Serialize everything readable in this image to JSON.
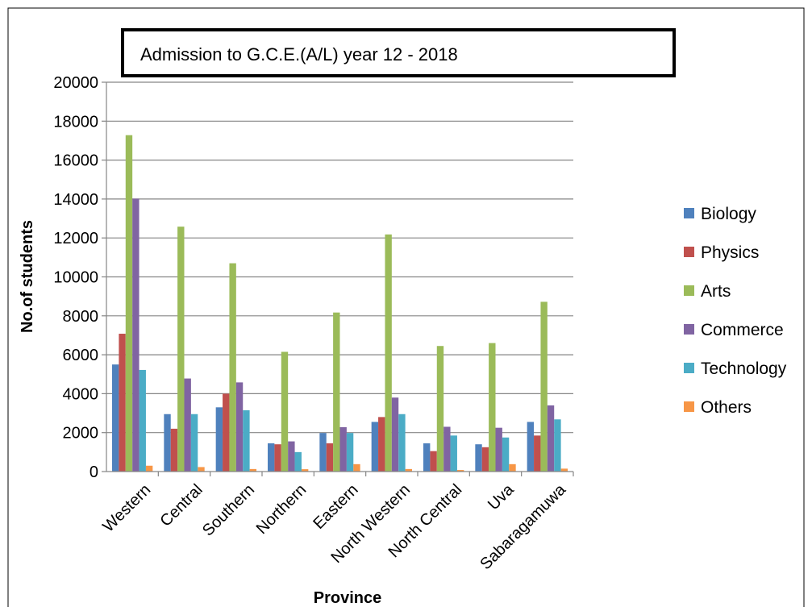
{
  "chart_data": {
    "type": "bar",
    "title": "Admission to G.C.E.(A/L) year 12 - 2018",
    "xlabel": "Province",
    "ylabel": "No.of students",
    "ylim": [
      0,
      20000
    ],
    "yticks": [
      0,
      2000,
      4000,
      6000,
      8000,
      10000,
      12000,
      14000,
      16000,
      18000,
      20000
    ],
    "grid": true,
    "legend_position": "right",
    "categories": [
      "Western",
      "Central",
      "Southern",
      "Northern",
      "Eastern",
      "North Western",
      "North Central",
      "Uva",
      "Sabaragamuwa"
    ],
    "series": [
      {
        "name": "Biology",
        "color": "#4F81BD",
        "values": [
          5500,
          2950,
          3300,
          1450,
          1980,
          2550,
          1450,
          1400,
          2550
        ]
      },
      {
        "name": "Physics",
        "color": "#C0504D",
        "values": [
          7080,
          2200,
          4000,
          1400,
          1450,
          2800,
          1050,
          1250,
          1850
        ]
      },
      {
        "name": "Arts",
        "color": "#9BBB59",
        "values": [
          17280,
          12580,
          10700,
          6150,
          8170,
          12180,
          6450,
          6600,
          8720
        ]
      },
      {
        "name": "Commerce",
        "color": "#8064A2",
        "values": [
          14020,
          4780,
          4580,
          1550,
          2280,
          3800,
          2300,
          2250,
          3400
        ]
      },
      {
        "name": "Technology",
        "color": "#4BACC6",
        "values": [
          5220,
          2950,
          3150,
          1000,
          1980,
          2950,
          1850,
          1750,
          2680
        ]
      },
      {
        "name": "Others",
        "color": "#F79646",
        "values": [
          300,
          230,
          130,
          120,
          380,
          130,
          80,
          380,
          150
        ]
      }
    ]
  }
}
